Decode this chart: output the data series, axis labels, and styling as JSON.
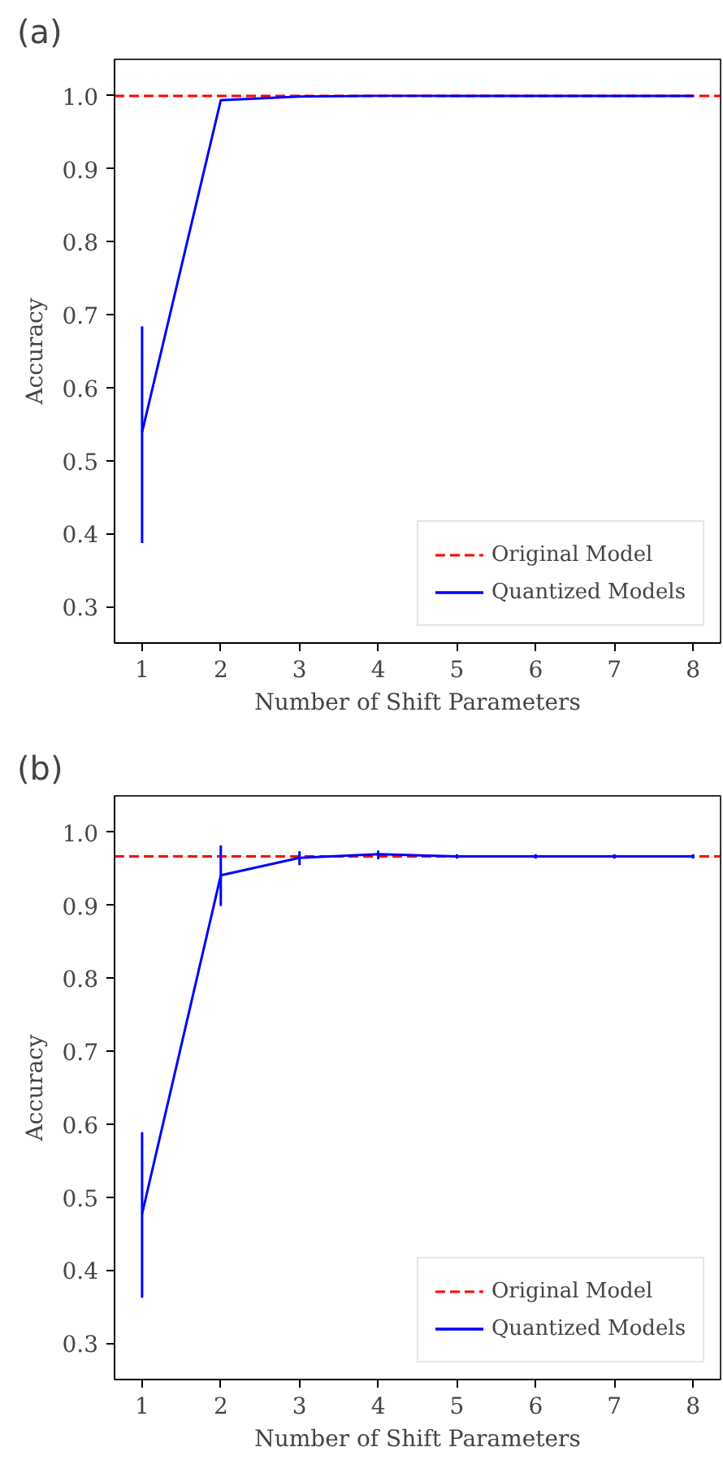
{
  "chart_data": [
    {
      "type": "line",
      "title": "(a)",
      "xlabel": "Number of Shift Parameters",
      "ylabel": "Accuracy",
      "x": [
        1,
        2,
        3,
        4,
        5,
        6,
        7,
        8
      ],
      "xlim": [
        0.65,
        8.35
      ],
      "ylim": [
        0.25,
        1.05
      ],
      "xticks": [
        1,
        2,
        3,
        4,
        5,
        6,
        7,
        8
      ],
      "yticks": [
        0.3,
        0.4,
        0.5,
        0.6,
        0.7,
        0.8,
        0.9,
        {
          "value": 1,
          "label": "1.0"
        }
      ],
      "grid": false,
      "legend": "bottom right",
      "marker": "none",
      "line_style": "solid",
      "series": [
        {
          "name": "Quantized Models",
          "color": "#0000ff",
          "values": [
            0.539,
            0.994,
            0.999,
            1.0,
            1.0,
            1.0,
            1.0,
            1.0
          ],
          "errors": [
            [
              0.387,
              0.684
            ],
            null,
            null,
            null,
            null,
            null,
            null,
            null
          ]
        }
      ],
      "ref_lines": [
        {
          "axis": "y",
          "value": 1.0,
          "label": "Original Model",
          "color": "#ff0000",
          "line_style": "dashed"
        }
      ]
    },
    {
      "type": "line",
      "title": "(b)",
      "xlabel": "Number of Shift Parameters",
      "ylabel": "Accuracy",
      "x": [
        1,
        2,
        3,
        4,
        5,
        6,
        7,
        8
      ],
      "xlim": [
        0.65,
        8.35
      ],
      "ylim": [
        0.25,
        1.05
      ],
      "xticks": [
        1,
        2,
        3,
        4,
        5,
        6,
        7,
        8
      ],
      "yticks": [
        0.3,
        0.4,
        0.5,
        0.6,
        0.7,
        0.8,
        0.9,
        {
          "value": 1,
          "label": "1.0"
        }
      ],
      "grid": false,
      "legend": "bottom right",
      "marker": "none",
      "line_style": "solid",
      "series": [
        {
          "name": "Quantized Models",
          "color": "#0000ff",
          "values": [
            0.477,
            0.941,
            0.965,
            0.97,
            0.967,
            0.967,
            0.967,
            0.967
          ],
          "errors": [
            [
              0.362,
              0.589
            ],
            [
              0.899,
              0.982
            ],
            [
              0.955,
              0.974
            ],
            [
              0.963,
              0.975
            ],
            [
              0.964,
              0.97
            ],
            [
              0.964,
              0.97
            ],
            [
              0.964,
              0.97
            ],
            [
              0.964,
              0.97
            ]
          ]
        }
      ],
      "ref_lines": [
        {
          "axis": "y",
          "value": 0.967,
          "label": "Original Model",
          "color": "#ff0000",
          "line_style": "dashed"
        }
      ]
    }
  ]
}
